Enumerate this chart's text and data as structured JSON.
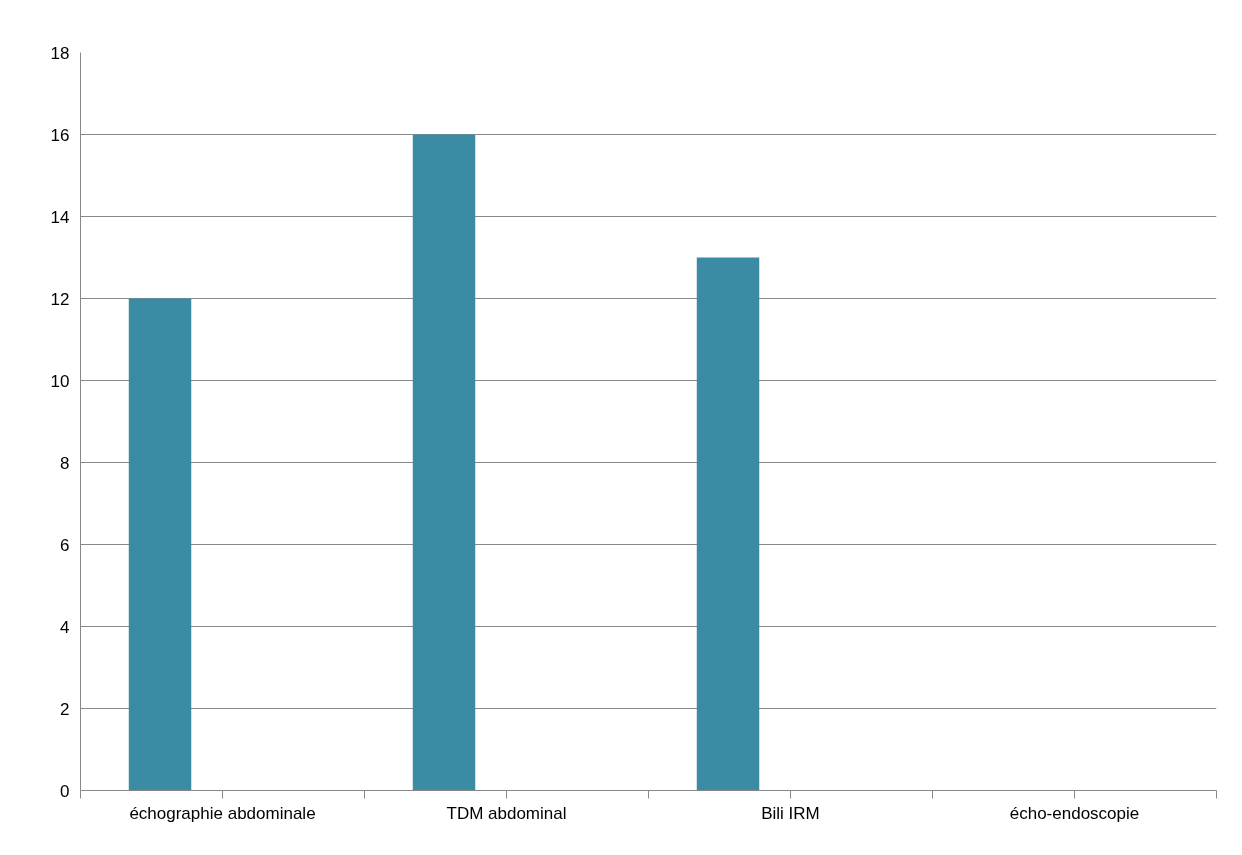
{
  "chart_data": {
    "type": "bar",
    "categories": [
      "échographie abdominale",
      "TDM abdominal",
      "Bili IRM",
      "écho-endoscopie"
    ],
    "values": [
      12,
      16,
      13,
      0
    ],
    "color": "#3c8ba5",
    "ylim": [
      0,
      18
    ],
    "yticks": [
      0,
      2,
      4,
      6,
      8,
      10,
      12,
      14,
      16,
      18
    ],
    "grid": "y"
  }
}
